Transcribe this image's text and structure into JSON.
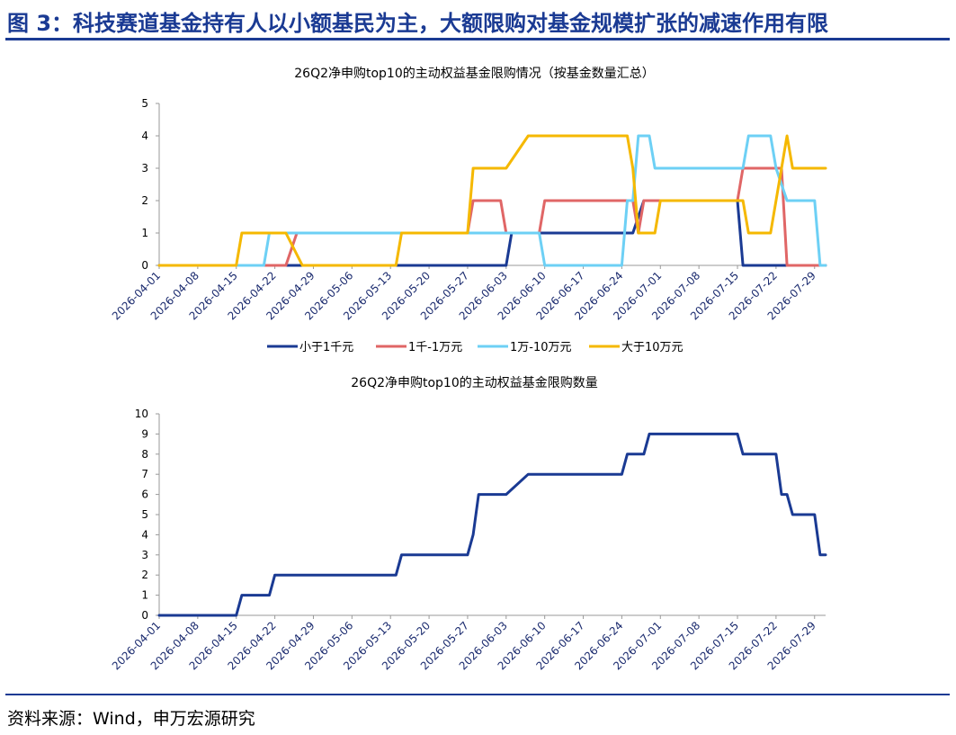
{
  "header": {
    "title": "图 3：科技赛道基金持有人以小额基民为主，大额限购对基金规模扩张的减速作用有限"
  },
  "footer": {
    "source": "资料来源：Wind，申万宏源研究"
  },
  "chart_data": [
    {
      "type": "line",
      "title": "26Q2净申购top10的主动权益基金限购情况（按基金数量汇总）",
      "x_start": "2026-04-01",
      "x_end": "2026-07-31",
      "tick_labels": [
        "2026-04-01",
        "2026-04-08",
        "2026-04-15",
        "2026-04-22",
        "2026-04-29",
        "2026-05-06",
        "2026-05-13",
        "2026-05-20",
        "2026-05-27",
        "2026-06-03",
        "2026-06-10",
        "2026-06-17",
        "2026-06-24",
        "2026-07-01",
        "2026-07-08",
        "2026-07-15",
        "2026-07-22",
        "2026-07-29"
      ],
      "ylim": [
        0,
        5
      ],
      "yticks": [
        0,
        1,
        2,
        3,
        4,
        5
      ],
      "legend_position": "bottom",
      "series": [
        {
          "name": "小于1千元",
          "color": "#1a3a93",
          "x": [
            "2026-04-01",
            "2026-05-13",
            "2026-05-14",
            "2026-06-03",
            "2026-06-04",
            "2026-06-26",
            "2026-06-28",
            "2026-07-15",
            "2026-07-16",
            "2026-07-29",
            "2026-07-31"
          ],
          "y": [
            0,
            0,
            0,
            0,
            1,
            1,
            2,
            2,
            0,
            0,
            0
          ]
        },
        {
          "name": "1千-1万元",
          "color": "#e06666",
          "x": [
            "2026-04-01",
            "2026-04-22",
            "2026-04-24",
            "2026-04-26",
            "2026-05-27",
            "2026-05-28",
            "2026-06-02",
            "2026-06-03",
            "2026-06-09",
            "2026-06-10",
            "2026-06-26",
            "2026-06-27",
            "2026-06-28",
            "2026-07-15",
            "2026-07-16",
            "2026-07-23",
            "2026-07-24",
            "2026-07-31"
          ],
          "y": [
            0,
            0,
            0,
            1,
            1,
            2,
            2,
            1,
            1,
            2,
            2,
            1,
            2,
            2,
            3,
            3,
            0,
            0
          ]
        },
        {
          "name": "1万-10万元",
          "color": "#6dd0f5",
          "x": [
            "2026-04-01",
            "2026-04-20",
            "2026-04-21",
            "2026-06-09",
            "2026-06-10",
            "2026-06-24",
            "2026-06-25",
            "2026-06-26",
            "2026-06-27",
            "2026-06-29",
            "2026-06-30",
            "2026-07-16",
            "2026-07-17",
            "2026-07-21",
            "2026-07-22",
            "2026-07-24",
            "2026-07-29",
            "2026-07-30",
            "2026-07-31"
          ],
          "y": [
            0,
            0,
            1,
            1,
            0,
            0,
            2,
            2,
            4,
            4,
            3,
            3,
            4,
            4,
            3,
            2,
            2,
            0,
            0
          ]
        },
        {
          "name": "大于10万元",
          "color": "#f5b800",
          "x": [
            "2026-04-01",
            "2026-04-15",
            "2026-04-16",
            "2026-04-24",
            "2026-04-27",
            "2026-05-14",
            "2026-05-15",
            "2026-05-27",
            "2026-05-28",
            "2026-06-03",
            "2026-06-07",
            "2026-06-25",
            "2026-06-26",
            "2026-06-27",
            "2026-06-30",
            "2026-07-01",
            "2026-07-16",
            "2026-07-17",
            "2026-07-21",
            "2026-07-24",
            "2026-07-25",
            "2026-07-31"
          ],
          "y": [
            0,
            0,
            1,
            1,
            0,
            0,
            1,
            1,
            3,
            3,
            4,
            4,
            3,
            1,
            1,
            2,
            2,
            1,
            1,
            4,
            3,
            3
          ]
        }
      ]
    },
    {
      "type": "line",
      "title": "26Q2净申购top10的主动权益基金限购数量",
      "x_start": "2026-04-01",
      "x_end": "2026-07-31",
      "tick_labels": [
        "2026-04-01",
        "2026-04-08",
        "2026-04-15",
        "2026-04-22",
        "2026-04-29",
        "2026-05-06",
        "2026-05-13",
        "2026-05-20",
        "2026-05-27",
        "2026-06-03",
        "2026-06-10",
        "2026-06-17",
        "2026-06-24",
        "2026-07-01",
        "2026-07-08",
        "2026-07-15",
        "2026-07-22",
        "2026-07-29"
      ],
      "ylim": [
        0,
        10
      ],
      "yticks": [
        0,
        1,
        2,
        3,
        4,
        5,
        6,
        7,
        8,
        9,
        10
      ],
      "series": [
        {
          "color": "#1a3a93",
          "x": [
            "2026-04-01",
            "2026-04-15",
            "2026-04-16",
            "2026-04-21",
            "2026-04-22",
            "2026-05-14",
            "2026-05-15",
            "2026-05-27",
            "2026-05-28",
            "2026-05-29",
            "2026-06-03",
            "2026-06-07",
            "2026-06-24",
            "2026-06-25",
            "2026-06-28",
            "2026-06-29",
            "2026-07-15",
            "2026-07-16",
            "2026-07-22",
            "2026-07-23",
            "2026-07-24",
            "2026-07-25",
            "2026-07-29",
            "2026-07-30",
            "2026-07-31"
          ],
          "y": [
            0,
            0,
            1,
            1,
            2,
            2,
            3,
            3,
            4,
            6,
            6,
            7,
            7,
            8,
            8,
            9,
            9,
            8,
            8,
            6,
            6,
            5,
            5,
            3,
            3
          ]
        }
      ]
    }
  ]
}
